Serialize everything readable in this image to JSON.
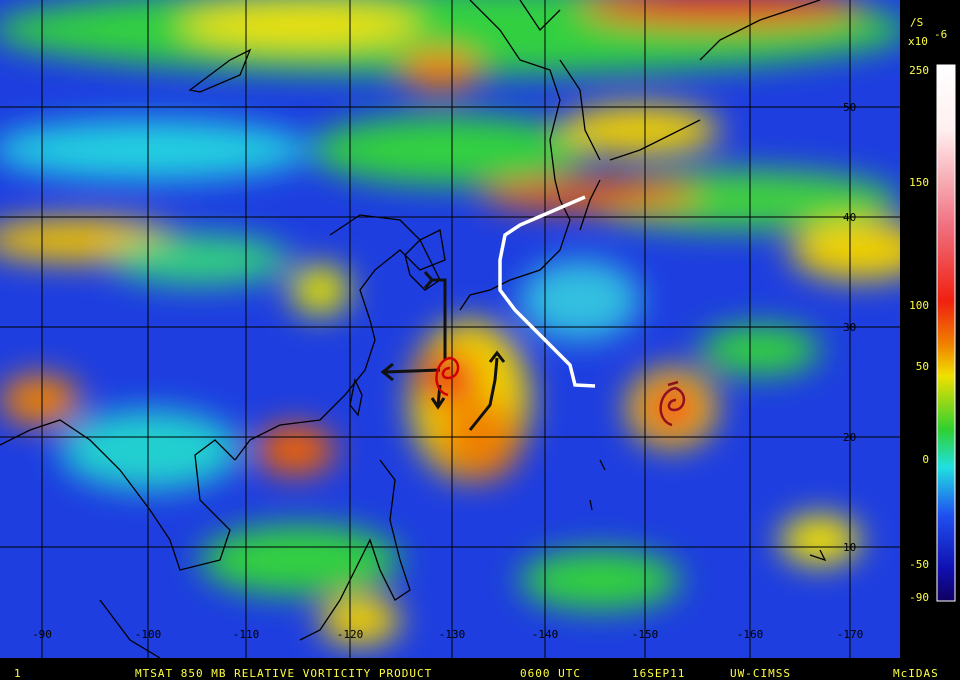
{
  "map": {
    "lat_labels": [
      "50",
      "40",
      "30",
      "20",
      "10"
    ],
    "lon_labels": [
      "-90",
      "-100",
      "-110",
      "-120",
      "-130",
      "-140",
      "-150",
      "-160",
      "-170"
    ]
  },
  "colorbar": {
    "unit": "/S",
    "scale": "x10",
    "exponent": "-6",
    "labels": [
      "250",
      "150",
      "100",
      "50",
      "0",
      "-50",
      "-90"
    ]
  },
  "footer": {
    "frame": "1",
    "product": "MTSAT 850 MB RELATIVE VORTICITY PRODUCT",
    "time": "0600 UTC",
    "date": "16SEP11",
    "source": "UW-CIMSS",
    "system": "McIDAS"
  }
}
